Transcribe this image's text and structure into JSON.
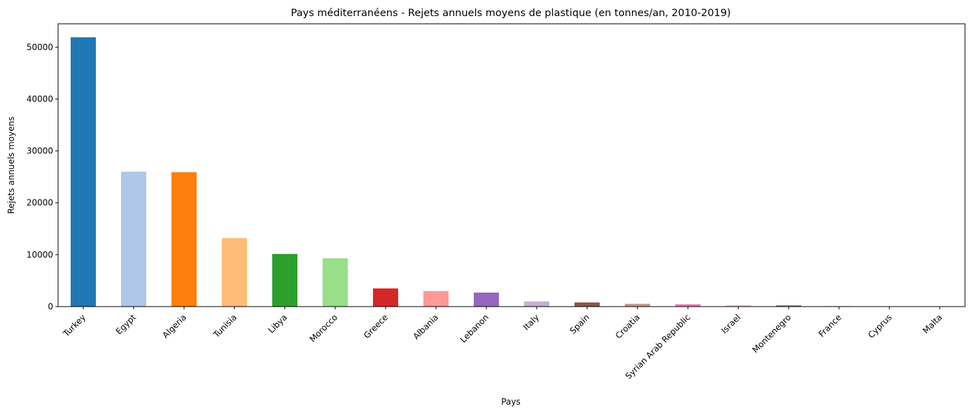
{
  "chart_data": {
    "type": "bar",
    "title": "Pays méditerranéens - Rejets annuels moyens de plastique (en tonnes/an, 2010-2019)",
    "xlabel": "Pays",
    "ylabel": "Rejets annuels moyens",
    "categories": [
      "Turkey",
      "Egypt",
      "Algeria",
      "Tunisia",
      "Libya",
      "Morocco",
      "Greece",
      "Albania",
      "Lebanon",
      "Italy",
      "Spain",
      "Croatia",
      "Syrian Arab Republic",
      "Israel",
      "Montenegro",
      "France",
      "Cyprus",
      "Malta"
    ],
    "values": [
      51900,
      26000,
      25900,
      13200,
      10150,
      9300,
      3500,
      3000,
      2700,
      1000,
      800,
      550,
      450,
      250,
      250,
      100,
      30,
      20
    ],
    "colors": [
      "#1f77b4",
      "#aec7e8",
      "#ff7f0e",
      "#ffbb78",
      "#2ca02c",
      "#98df8a",
      "#d62728",
      "#ff9896",
      "#9467bd",
      "#c5b0d5",
      "#8c564b",
      "#c49c94",
      "#e377c2",
      "#f7b6d2",
      "#7f7f7f",
      "#c7c7c7",
      "#bcbd22",
      "#dbdb8d"
    ],
    "yticks": [
      0,
      10000,
      20000,
      30000,
      40000,
      50000
    ],
    "ytick_labels": [
      "0",
      "10000",
      "20000",
      "30000",
      "40000",
      "50000"
    ],
    "ylim": [
      0,
      54500
    ],
    "grid": false,
    "legend": "none"
  }
}
